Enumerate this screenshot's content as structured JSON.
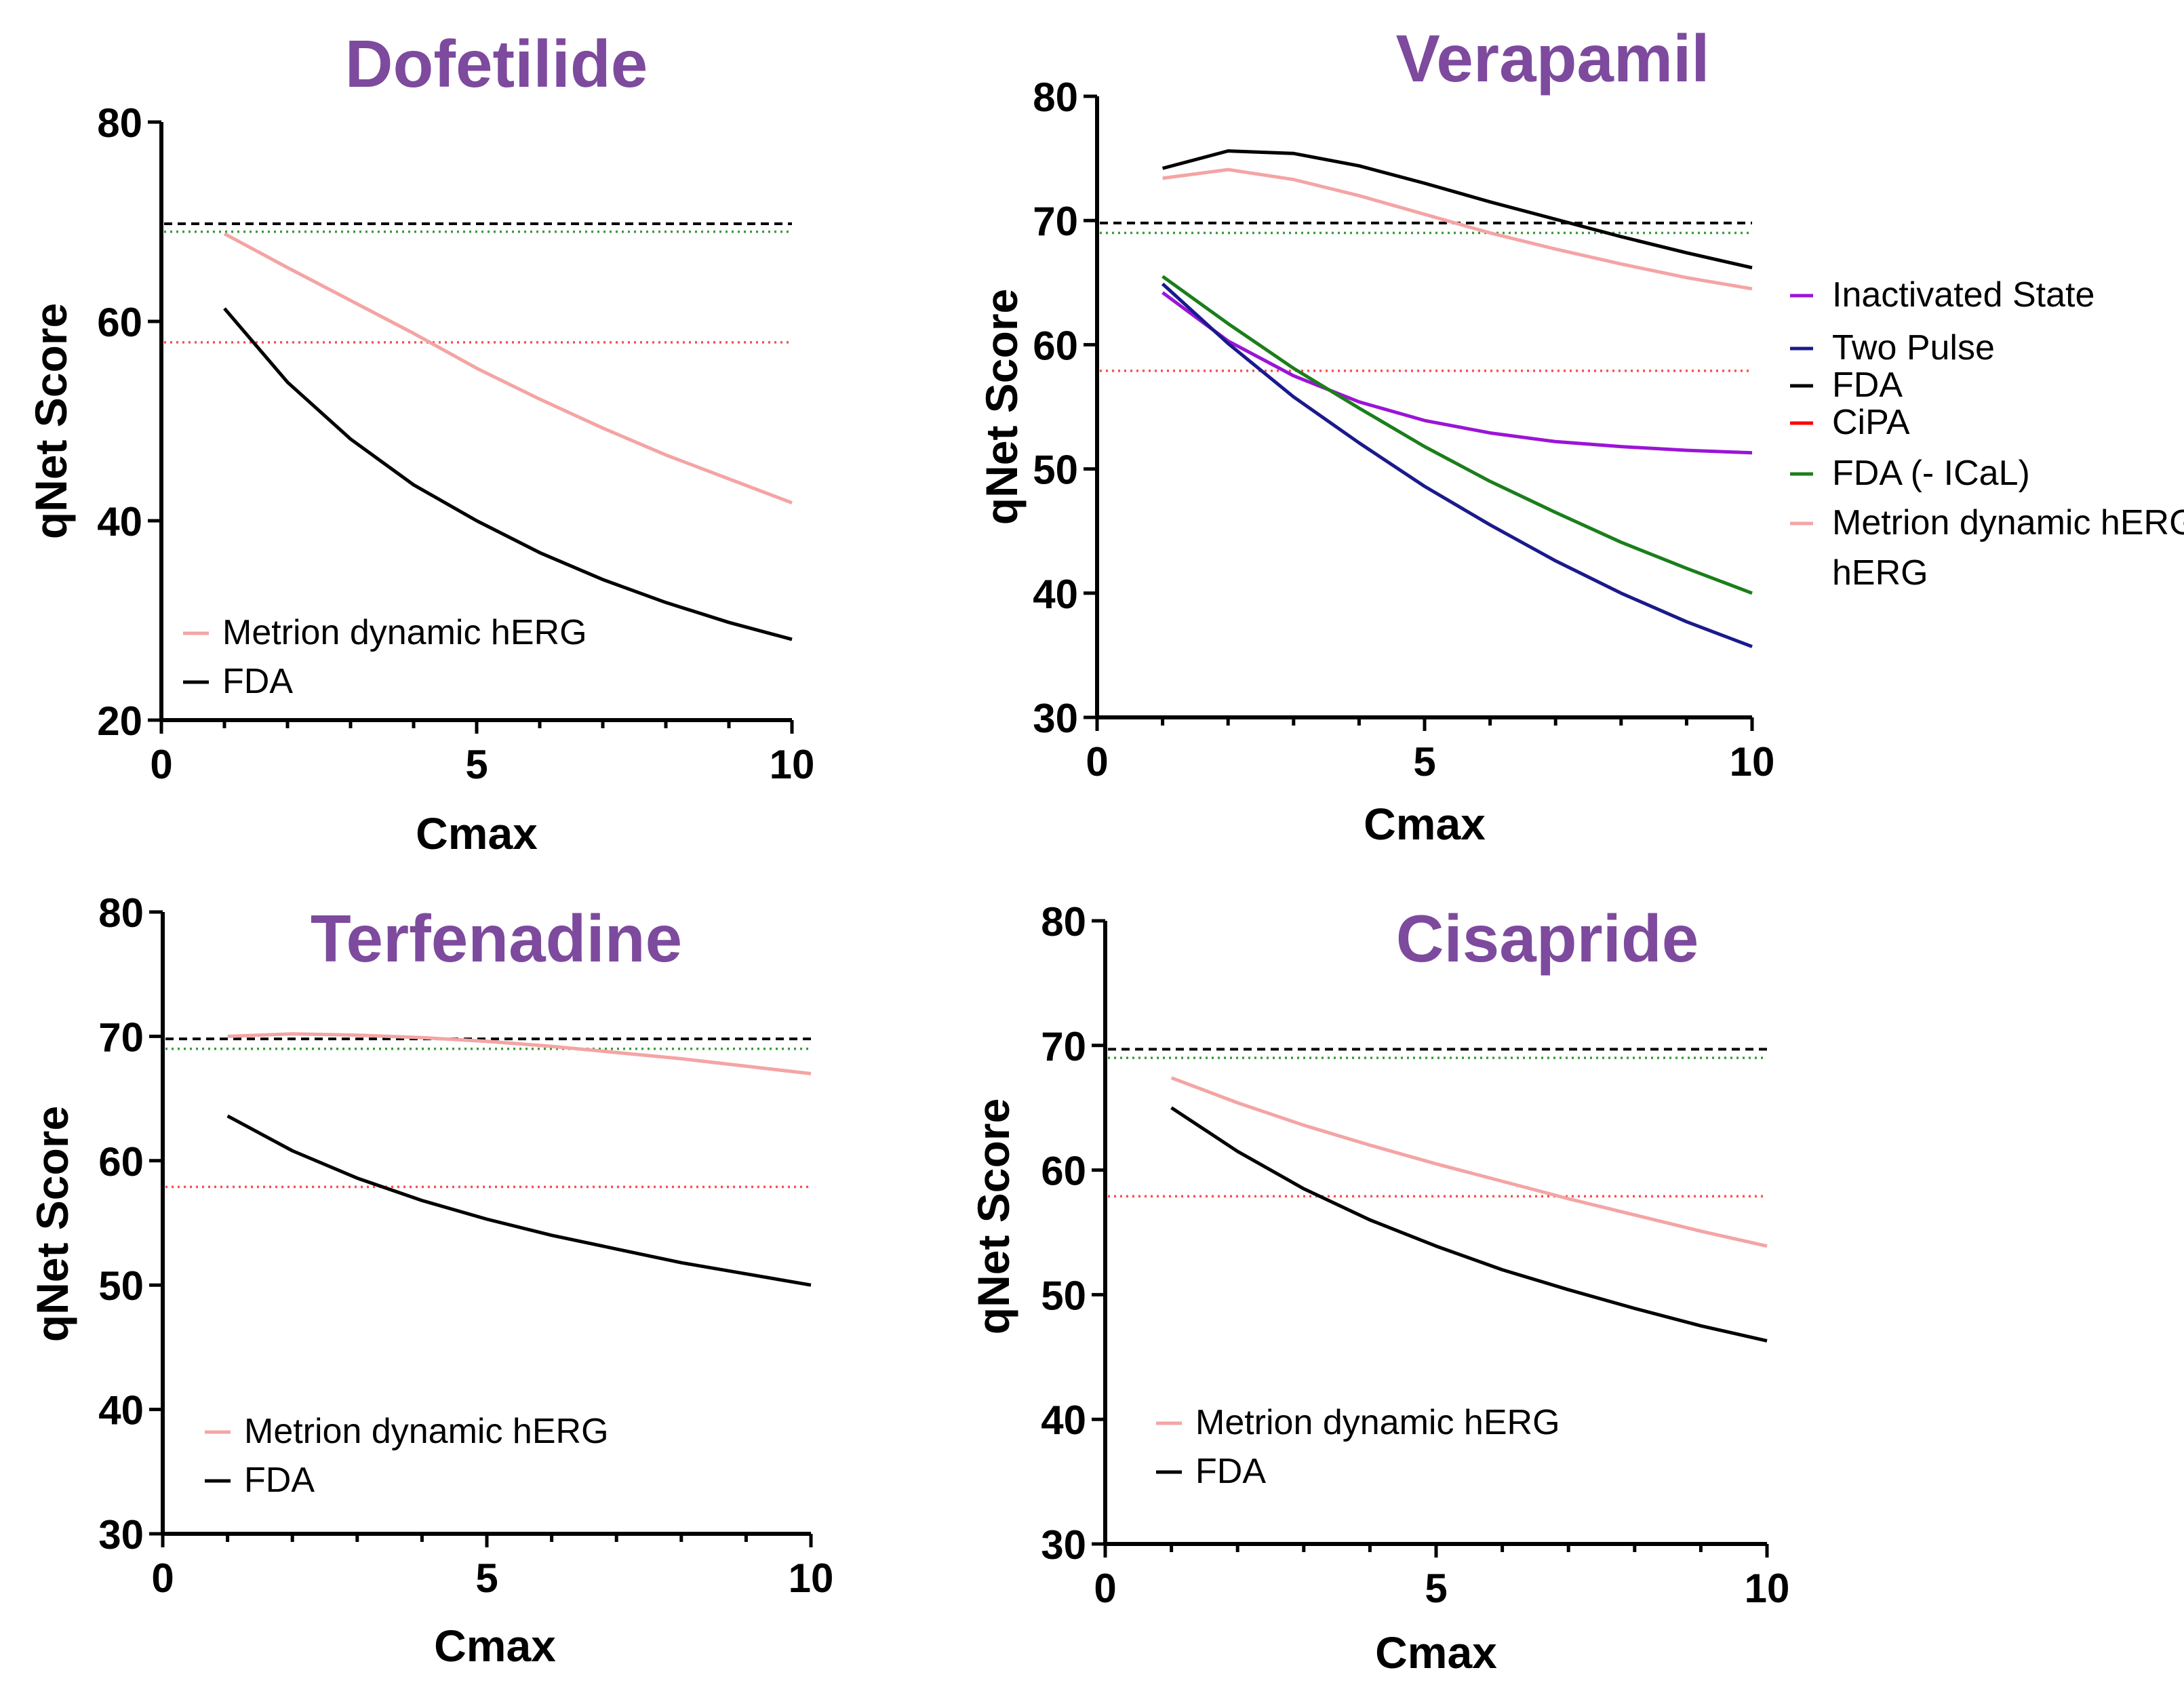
{
  "colors": {
    "title": "#7d4a9e",
    "fda": "#000000",
    "metrion": "#f4a4a4",
    "inactivated": "#9b14d6",
    "two_pulse": "#1a1a8c",
    "cipa": "#ff0000",
    "fda_no_ical": "#1b7e1b",
    "ref_fda": "#000000",
    "ref_fda_no_ical": "#3a9a3a",
    "ref_cipa": "#ff4a4a"
  },
  "chart_data": [
    {
      "id": "dofetilide",
      "type": "line",
      "title": "Dofetilide",
      "xlabel": "Cmax",
      "ylabel": "qNet Score",
      "xlim": [
        0,
        10
      ],
      "ylim": [
        20,
        80
      ],
      "xticks": [
        "0",
        "5",
        "10"
      ],
      "xtick_values": [
        0,
        5,
        10
      ],
      "yticks": [
        "20",
        "40",
        "60",
        "80"
      ],
      "ytick_values": [
        20,
        40,
        60,
        80
      ],
      "x": [
        1,
        2,
        3,
        4,
        5,
        6,
        7,
        8,
        9,
        10
      ],
      "series": [
        {
          "name": "Metrion dynamic hERG",
          "color_key": "metrion",
          "values": [
            68.8,
            65.4,
            62.1,
            58.8,
            55.3,
            52.2,
            49.3,
            46.6,
            44.2,
            41.8
          ]
        },
        {
          "name": "FDA",
          "color_key": "fda",
          "values": [
            61.3,
            53.9,
            48.2,
            43.6,
            40.0,
            36.8,
            34.1,
            31.8,
            29.8,
            28.1
          ]
        }
      ],
      "reference_lines": [
        {
          "y": 69.8,
          "color_key": "ref_fda",
          "style": "dashed"
        },
        {
          "y": 69.0,
          "color_key": "ref_fda_no_ical",
          "style": "dotted"
        },
        {
          "y": 57.9,
          "color_key": "ref_cipa",
          "style": "dotted"
        }
      ],
      "legend": [
        "Metrion dynamic hERG",
        "FDA"
      ],
      "legend_placement": "bottom-left"
    },
    {
      "id": "verapamil",
      "type": "line",
      "title": "Verapamil",
      "xlabel": "Cmax",
      "ylabel": "qNet Score",
      "xlim": [
        0,
        10
      ],
      "ylim": [
        30,
        80
      ],
      "xticks": [
        "0",
        "5",
        "10"
      ],
      "xtick_values": [
        0,
        5,
        10
      ],
      "yticks": [
        "30",
        "40",
        "50",
        "60",
        "70",
        "80"
      ],
      "ytick_values": [
        30,
        40,
        50,
        60,
        70,
        80
      ],
      "x": [
        1,
        2,
        3,
        4,
        5,
        6,
        7,
        8,
        9,
        10
      ],
      "series": [
        {
          "name": "Inactivated State",
          "color_key": "inactivated",
          "values": [
            64.2,
            60.3,
            57.5,
            55.4,
            53.9,
            52.9,
            52.2,
            51.8,
            51.5,
            51.3
          ]
        },
        {
          "name": "Two Pulse",
          "color_key": "two_pulse",
          "values": [
            64.9,
            60.1,
            55.8,
            52.1,
            48.6,
            45.5,
            42.6,
            40.0,
            37.7,
            35.7
          ]
        },
        {
          "name": "FDA",
          "color_key": "fda",
          "values": [
            74.2,
            75.6,
            75.4,
            74.4,
            73.0,
            71.5,
            70.1,
            68.7,
            67.4,
            66.2
          ]
        },
        {
          "name": "FDA  (- ICaL)",
          "color_key": "fda_no_ical",
          "values": [
            65.5,
            61.7,
            58.1,
            54.9,
            51.8,
            49.0,
            46.5,
            44.1,
            42.0,
            40.0
          ]
        },
        {
          "name": "Metrion dynamic hERG",
          "color_key": "metrion",
          "values": [
            73.4,
            74.1,
            73.3,
            72.0,
            70.5,
            69.0,
            67.7,
            66.5,
            65.4,
            64.5
          ]
        }
      ],
      "reference_lines": [
        {
          "y": 69.8,
          "color_key": "ref_fda",
          "style": "dashed"
        },
        {
          "y": 69.0,
          "color_key": "ref_fda_no_ical",
          "style": "dotted"
        },
        {
          "y": 57.9,
          "color_key": "ref_cipa",
          "style": "dotted"
        }
      ],
      "legend": [
        "Inactivated State",
        "Two Pulse",
        "FDA",
        "CiPA",
        "FDA  (- ICaL)",
        "Metrion dynamic hERG"
      ],
      "legend_placement": "right"
    },
    {
      "id": "terfenadine",
      "type": "line",
      "title": "Terfenadine",
      "xlabel": "Cmax",
      "ylabel": "qNet Score",
      "xlim": [
        0,
        10
      ],
      "ylim": [
        30,
        80
      ],
      "xticks": [
        "0",
        "5",
        "10"
      ],
      "xtick_values": [
        0,
        5,
        10
      ],
      "yticks": [
        "30",
        "40",
        "50",
        "60",
        "70",
        "80"
      ],
      "ytick_values": [
        30,
        40,
        50,
        60,
        70,
        80
      ],
      "x": [
        1,
        2,
        3,
        4,
        5,
        6,
        7,
        8,
        9,
        10
      ],
      "series": [
        {
          "name": "Metrion dynamic hERG",
          "color_key": "metrion",
          "values": [
            70.0,
            70.2,
            70.1,
            69.9,
            69.6,
            69.2,
            68.7,
            68.2,
            67.6,
            67.0
          ]
        },
        {
          "name": "FDA",
          "color_key": "fda",
          "values": [
            63.6,
            60.8,
            58.6,
            56.8,
            55.3,
            54.0,
            52.9,
            51.8,
            50.9,
            50.0
          ]
        }
      ],
      "reference_lines": [
        {
          "y": 69.8,
          "color_key": "ref_fda",
          "style": "dashed"
        },
        {
          "y": 69.0,
          "color_key": "ref_fda_no_ical",
          "style": "dotted"
        },
        {
          "y": 57.9,
          "color_key": "ref_cipa",
          "style": "dotted"
        }
      ],
      "legend": [
        "Metrion dynamic hERG",
        "FDA"
      ],
      "legend_placement": "bottom-left"
    },
    {
      "id": "cisapride",
      "type": "line",
      "title": "Cisapride",
      "xlabel": "Cmax",
      "ylabel": "qNet Score",
      "xlim": [
        0,
        10
      ],
      "ylim": [
        30,
        80
      ],
      "xticks": [
        "0",
        "5",
        "10"
      ],
      "xtick_values": [
        0,
        5,
        10
      ],
      "yticks": [
        "30",
        "40",
        "50",
        "60",
        "70",
        "80"
      ],
      "ytick_values": [
        30,
        40,
        50,
        60,
        70,
        80
      ],
      "x": [
        1,
        2,
        3,
        4,
        5,
        6,
        7,
        8,
        9,
        10
      ],
      "series": [
        {
          "name": "Metrion dynamic hERG",
          "color_key": "metrion",
          "values": [
            67.4,
            65.4,
            63.6,
            62.0,
            60.5,
            59.1,
            57.7,
            56.4,
            55.1,
            53.9
          ]
        },
        {
          "name": "FDA",
          "color_key": "fda",
          "values": [
            65.0,
            61.5,
            58.5,
            56.0,
            53.9,
            52.0,
            50.4,
            48.9,
            47.5,
            46.3
          ]
        }
      ],
      "reference_lines": [
        {
          "y": 69.7,
          "color_key": "ref_fda",
          "style": "dashed"
        },
        {
          "y": 69.0,
          "color_key": "ref_fda_no_ical",
          "style": "dotted"
        },
        {
          "y": 57.9,
          "color_key": "ref_cipa",
          "style": "dotted"
        }
      ],
      "legend": [
        "Metrion dynamic hERG",
        "FDA"
      ],
      "legend_placement": "bottom-left"
    }
  ]
}
